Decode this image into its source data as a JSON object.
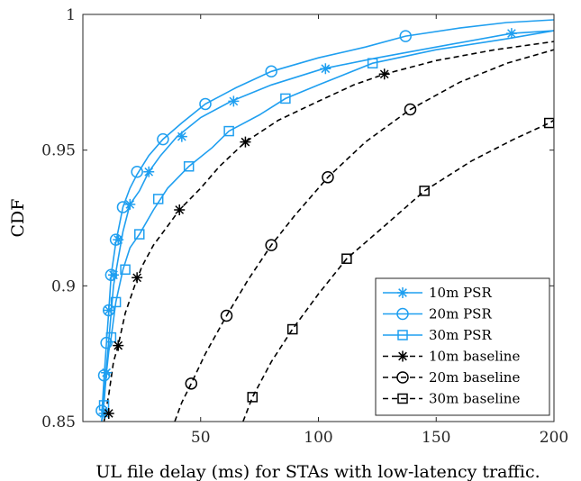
{
  "chart_data": {
    "type": "line",
    "title": "",
    "xlabel": "UL file delay (ms) for STAs with low-latency traffic.",
    "ylabel": "CDF",
    "xlim": [
      0,
      200
    ],
    "ylim": [
      0.85,
      1.0
    ],
    "x_ticks": [
      50,
      100,
      150,
      200
    ],
    "x_tick_labels": [
      "50",
      "100",
      "150",
      "200"
    ],
    "y_ticks": [
      0.85,
      0.9,
      0.95,
      1.0
    ],
    "y_tick_labels": [
      "0.85",
      "0.9",
      "0.95",
      "1"
    ],
    "grid": false,
    "legend_position": "bottom-right",
    "series": [
      {
        "name": "10m PSR",
        "color": "#1f9ff0",
        "style": "solid",
        "marker": "star",
        "points": [
          [
            8,
            0.85
          ],
          [
            9,
            0.86
          ],
          [
            10,
            0.87
          ],
          [
            11,
            0.88
          ],
          [
            12,
            0.89
          ],
          [
            13,
            0.9
          ],
          [
            15,
            0.91
          ],
          [
            17,
            0.92
          ],
          [
            20,
            0.93
          ],
          [
            24,
            0.935
          ],
          [
            28,
            0.942
          ],
          [
            33,
            0.948
          ],
          [
            40,
            0.955
          ],
          [
            50,
            0.962
          ],
          [
            63,
            0.968
          ],
          [
            80,
            0.974
          ],
          [
            102,
            0.98
          ],
          [
            125,
            0.984
          ],
          [
            150,
            0.988
          ],
          [
            182,
            0.993
          ],
          [
            200,
            0.994
          ]
        ],
        "markers": [
          [
            9,
            0.853
          ],
          [
            10,
            0.868
          ],
          [
            11,
            0.891
          ],
          [
            13,
            0.904
          ],
          [
            15,
            0.917
          ],
          [
            20,
            0.93
          ],
          [
            28,
            0.942
          ],
          [
            42,
            0.955
          ],
          [
            64,
            0.968
          ],
          [
            103,
            0.98
          ],
          [
            182,
            0.993
          ]
        ]
      },
      {
        "name": "20m PSR",
        "color": "#1f9ff0",
        "style": "solid",
        "marker": "circle",
        "points": [
          [
            8,
            0.852
          ],
          [
            9,
            0.866
          ],
          [
            10,
            0.879
          ],
          [
            11,
            0.891
          ],
          [
            12,
            0.904
          ],
          [
            14,
            0.916
          ],
          [
            17,
            0.929
          ],
          [
            20,
            0.936
          ],
          [
            23,
            0.941
          ],
          [
            28,
            0.948
          ],
          [
            34,
            0.954
          ],
          [
            42,
            0.96
          ],
          [
            52,
            0.967
          ],
          [
            65,
            0.973
          ],
          [
            80,
            0.979
          ],
          [
            100,
            0.984
          ],
          [
            120,
            0.988
          ],
          [
            137,
            0.992
          ],
          [
            160,
            0.995
          ],
          [
            180,
            0.997
          ],
          [
            200,
            0.998
          ]
        ],
        "markers": [
          [
            8,
            0.854
          ],
          [
            9,
            0.867
          ],
          [
            10,
            0.879
          ],
          [
            11,
            0.891
          ],
          [
            12,
            0.904
          ],
          [
            14,
            0.917
          ],
          [
            17,
            0.929
          ],
          [
            23,
            0.942
          ],
          [
            34,
            0.954
          ],
          [
            52,
            0.967
          ],
          [
            80,
            0.979
          ],
          [
            137,
            0.992
          ]
        ]
      },
      {
        "name": "30m PSR",
        "color": "#1f9ff0",
        "style": "solid",
        "marker": "square",
        "points": [
          [
            8,
            0.85
          ],
          [
            9,
            0.857
          ],
          [
            10,
            0.868
          ],
          [
            11,
            0.876
          ],
          [
            12,
            0.881
          ],
          [
            14,
            0.894
          ],
          [
            17,
            0.906
          ],
          [
            20,
            0.914
          ],
          [
            24,
            0.919
          ],
          [
            30,
            0.928
          ],
          [
            36,
            0.936
          ],
          [
            45,
            0.944
          ],
          [
            55,
            0.951
          ],
          [
            62,
            0.957
          ],
          [
            75,
            0.963
          ],
          [
            86,
            0.969
          ],
          [
            100,
            0.974
          ],
          [
            123,
            0.982
          ],
          [
            150,
            0.987
          ],
          [
            180,
            0.991
          ],
          [
            200,
            0.994
          ]
        ],
        "markers": [
          [
            9,
            0.856
          ],
          [
            12,
            0.881
          ],
          [
            14,
            0.894
          ],
          [
            18,
            0.906
          ],
          [
            24,
            0.919
          ],
          [
            32,
            0.932
          ],
          [
            45,
            0.944
          ],
          [
            62,
            0.957
          ],
          [
            86,
            0.969
          ],
          [
            123,
            0.982
          ]
        ]
      },
      {
        "name": "10m baseline",
        "color": "#000000",
        "style": "dashed",
        "marker": "star",
        "points": [
          [
            9,
            0.85
          ],
          [
            11,
            0.86
          ],
          [
            13,
            0.872
          ],
          [
            15,
            0.878
          ],
          [
            18,
            0.89
          ],
          [
            22,
            0.9
          ],
          [
            25,
            0.907
          ],
          [
            30,
            0.915
          ],
          [
            36,
            0.922
          ],
          [
            41,
            0.928
          ],
          [
            50,
            0.936
          ],
          [
            58,
            0.944
          ],
          [
            69,
            0.953
          ],
          [
            83,
            0.961
          ],
          [
            100,
            0.968
          ],
          [
            115,
            0.974
          ],
          [
            128,
            0.978
          ],
          [
            150,
            0.983
          ],
          [
            175,
            0.987
          ],
          [
            200,
            0.99
          ]
        ],
        "markers": [
          [
            11,
            0.853
          ],
          [
            15,
            0.878
          ],
          [
            23,
            0.903
          ],
          [
            41,
            0.928
          ],
          [
            69,
            0.953
          ],
          [
            128,
            0.978
          ]
        ]
      },
      {
        "name": "20m baseline",
        "color": "#000000",
        "style": "dashed",
        "marker": "circle",
        "points": [
          [
            39,
            0.85
          ],
          [
            42,
            0.857
          ],
          [
            46,
            0.864
          ],
          [
            52,
            0.875
          ],
          [
            61,
            0.889
          ],
          [
            70,
            0.902
          ],
          [
            80,
            0.915
          ],
          [
            90,
            0.926
          ],
          [
            104,
            0.94
          ],
          [
            120,
            0.953
          ],
          [
            139,
            0.965
          ],
          [
            160,
            0.975
          ],
          [
            180,
            0.982
          ],
          [
            200,
            0.987
          ]
        ],
        "markers": [
          [
            46,
            0.864
          ],
          [
            61,
            0.889
          ],
          [
            80,
            0.915
          ],
          [
            104,
            0.94
          ],
          [
            139,
            0.965
          ]
        ]
      },
      {
        "name": "30m baseline",
        "color": "#000000",
        "style": "dashed",
        "marker": "square",
        "points": [
          [
            68,
            0.85
          ],
          [
            72,
            0.859
          ],
          [
            80,
            0.872
          ],
          [
            89,
            0.884
          ],
          [
            100,
            0.897
          ],
          [
            112,
            0.91
          ],
          [
            128,
            0.922
          ],
          [
            145,
            0.935
          ],
          [
            165,
            0.946
          ],
          [
            183,
            0.954
          ],
          [
            198,
            0.96
          ],
          [
            200,
            0.961
          ]
        ],
        "markers": [
          [
            72,
            0.859
          ],
          [
            89,
            0.884
          ],
          [
            112,
            0.91
          ],
          [
            145,
            0.935
          ],
          [
            198,
            0.96
          ]
        ]
      }
    ]
  }
}
